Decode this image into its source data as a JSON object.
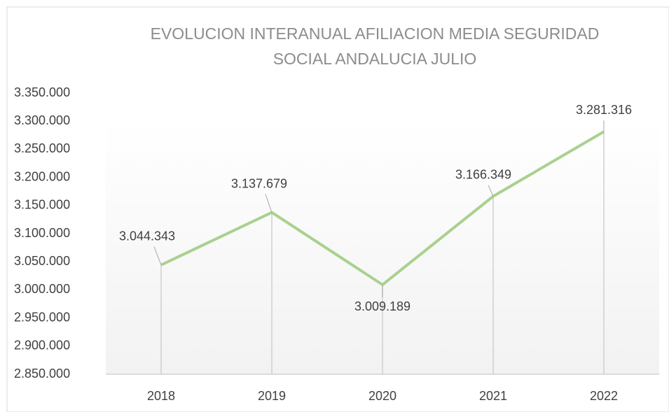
{
  "chart_data": {
    "type": "line",
    "title": [
      "EVOLUCION INTERANUAL AFILIACION MEDIA SEGURIDAD",
      "SOCIAL ANDALUCIA JULIO"
    ],
    "categories": [
      "2018",
      "2019",
      "2020",
      "2021",
      "2022"
    ],
    "values": [
      3044343,
      3137679,
      3009189,
      3166349,
      3281316
    ],
    "value_labels": [
      "3.044.343",
      "3.137.679",
      "3.009.189",
      "3.166.349",
      "3.281.316"
    ],
    "color": "#a9d18e",
    "ylim": [
      2850000,
      3350000
    ],
    "yticks": [
      {
        "value": 2850000,
        "label": "2.850.000"
      },
      {
        "value": 2900000,
        "label": "2.900.000"
      },
      {
        "value": 2950000,
        "label": "2.950.000"
      },
      {
        "value": 3000000,
        "label": "3.000.000"
      },
      {
        "value": 3050000,
        "label": "3.050.000"
      },
      {
        "value": 3100000,
        "label": "3.100.000"
      },
      {
        "value": 3150000,
        "label": "3.150.000"
      },
      {
        "value": 3200000,
        "label": "3.200.000"
      },
      {
        "value": 3250000,
        "label": "3.250.000"
      },
      {
        "value": 3300000,
        "label": "3.300.000"
      },
      {
        "value": 3350000,
        "label": "3.350.000"
      }
    ],
    "grid": false
  }
}
